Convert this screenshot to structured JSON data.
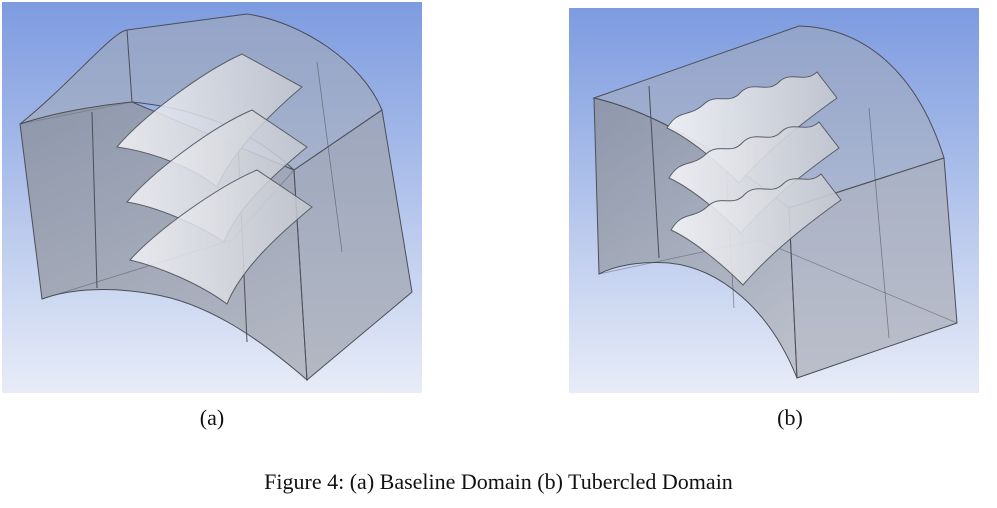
{
  "figure": {
    "panels": [
      {
        "label": "(a)",
        "tubercles": false
      },
      {
        "label": "(b)",
        "tubercles": true
      }
    ],
    "caption": "Figure 4: (a) Baseline Domain (b) Tubercled Domain"
  },
  "colors": {
    "background_top": "#7d9be0",
    "background_bottom": "#e7ecf7",
    "solid_face": "#8c919c",
    "solid_face_light": "#b4b9c3",
    "edge": "#4a4e56",
    "blade": "#e8e9ee"
  }
}
